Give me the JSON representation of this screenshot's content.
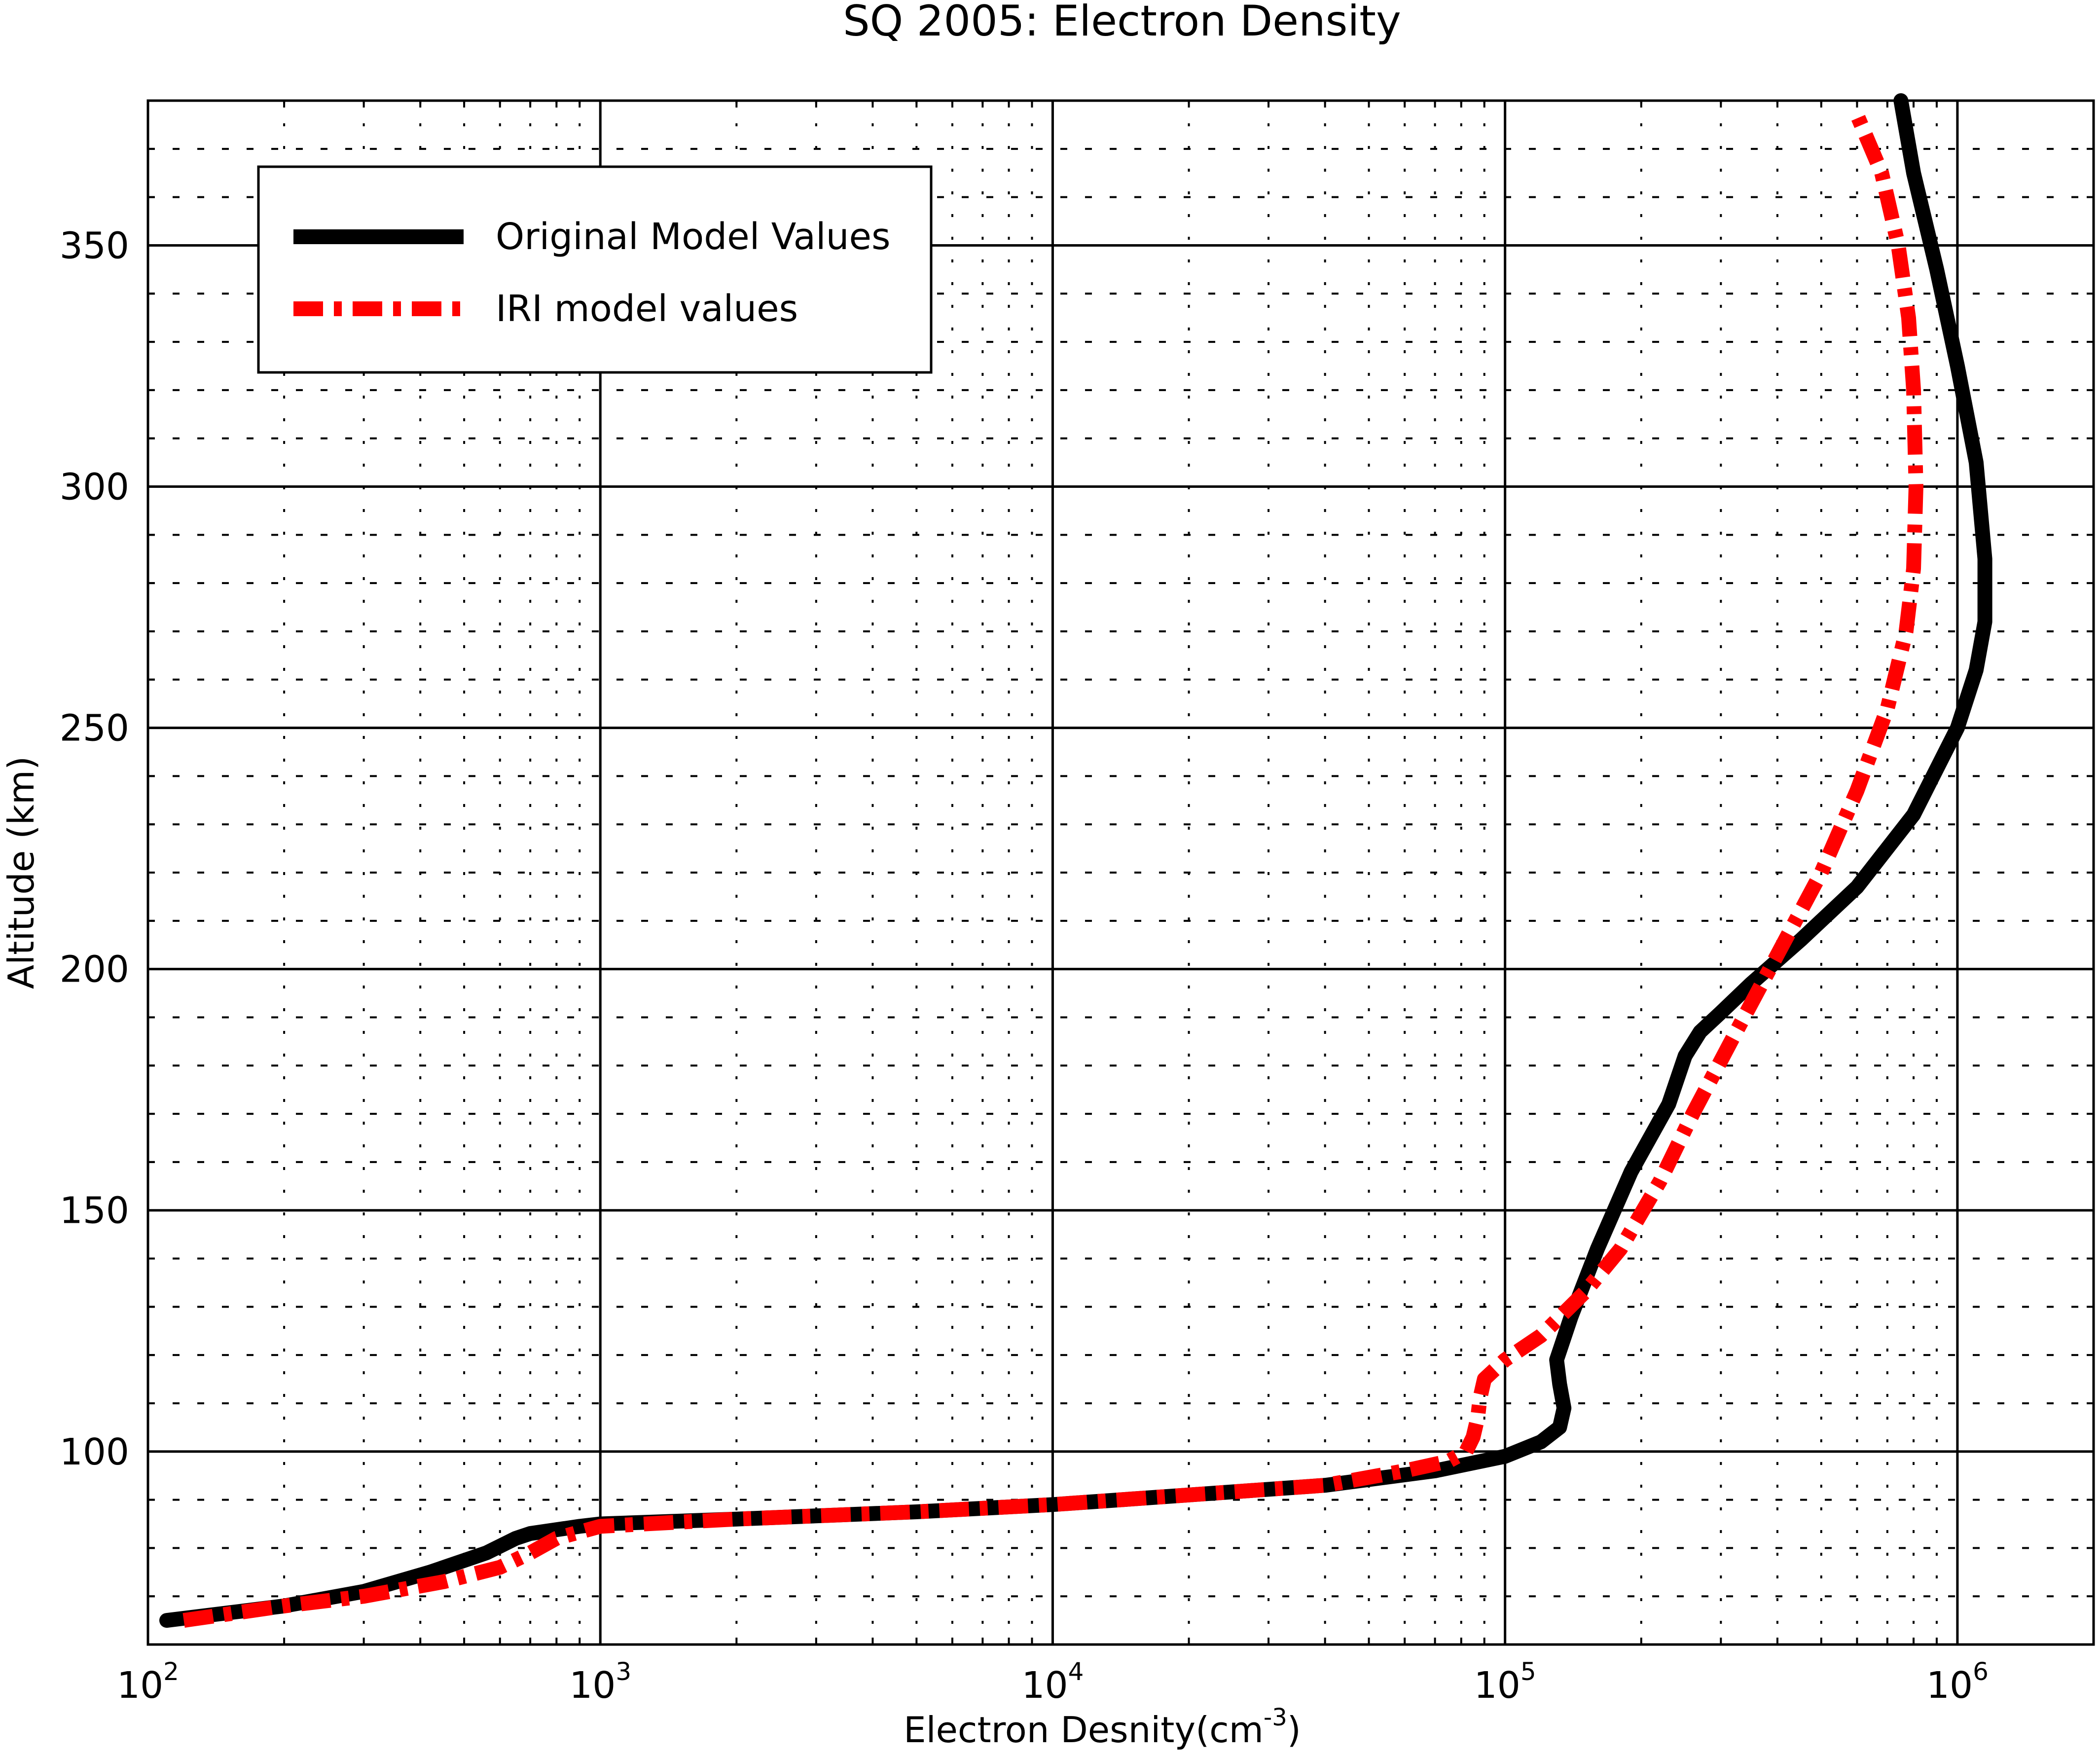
{
  "chart_data": {
    "type": "line",
    "title": "SQ 2005: Electron Density",
    "xlabel": {
      "base": "Electron Desnity(cm",
      "sup": "-3",
      "close": ")"
    },
    "ylabel": "Altitude (km)",
    "x_scale": "log",
    "xlim": [
      100,
      2000000
    ],
    "ylim": [
      60,
      380
    ],
    "grid": {
      "major": "solid",
      "minor": "dotted"
    },
    "x_major_ticks": [
      {
        "value": 100,
        "base": "10",
        "exp": "2"
      },
      {
        "value": 1000,
        "base": "10",
        "exp": "3"
      },
      {
        "value": 10000,
        "base": "10",
        "exp": "4"
      },
      {
        "value": 100000,
        "base": "10",
        "exp": "5"
      },
      {
        "value": 1000000,
        "base": "10",
        "exp": "6"
      }
    ],
    "y_major_ticks": [
      {
        "value": 100,
        "label": "100"
      },
      {
        "value": 150,
        "label": "150"
      },
      {
        "value": 200,
        "label": "200"
      },
      {
        "value": 250,
        "label": "250"
      },
      {
        "value": 300,
        "label": "300"
      },
      {
        "value": 350,
        "label": "350"
      }
    ],
    "legend": {
      "placement": "top-left"
    },
    "series": [
      {
        "name": "Original Model Values",
        "color": "#000000",
        "style": "solid",
        "x": [
          110,
          200,
          300,
          420,
          560,
          650,
          700,
          900,
          1000,
          2000,
          5000,
          10000,
          20000,
          40000,
          70000,
          100000,
          120000,
          132000,
          135000,
          132000,
          130000,
          140000,
          160000,
          190000,
          230000,
          250000,
          270000,
          300000,
          350000,
          450000,
          600000,
          800000,
          1000000,
          1100000,
          1150000,
          1150000,
          1100000,
          1000000,
          900000,
          800000,
          750000
        ],
        "y": [
          65,
          68,
          71,
          75,
          79,
          82,
          83,
          84.5,
          85,
          86,
          87.5,
          89,
          91,
          93,
          96,
          99,
          102,
          105,
          109,
          114,
          119,
          128,
          142,
          158,
          172,
          182,
          187,
          191,
          197,
          206,
          217,
          232,
          250,
          262,
          272,
          285,
          305,
          325,
          345,
          365,
          380
        ]
      },
      {
        "name": "IRI model values",
        "color": "#ff0000",
        "style": "dashdot",
        "x": [
          120,
          200,
          300,
          450,
          600,
          700,
          800,
          1000,
          2000,
          5000,
          10000,
          20000,
          40000,
          60000,
          75000,
          82000,
          85000,
          87000,
          88000,
          90000,
          100000,
          120000,
          150000,
          180000,
          220000,
          260000,
          320000,
          400000,
          500000,
          600000,
          700000,
          770000,
          800000,
          810000,
          800000,
          780000,
          740000,
          680000,
          600000
        ],
        "y": [
          65,
          68,
          70,
          73,
          76,
          79,
          82,
          84.5,
          86,
          87.5,
          89,
          91,
          93,
          96,
          98,
          100,
          103,
          107,
          111,
          115,
          119,
          124,
          133,
          142,
          156,
          170,
          186,
          203,
          220,
          237,
          254,
          270,
          283,
          300,
          320,
          335,
          350,
          365,
          377
        ]
      }
    ]
  }
}
